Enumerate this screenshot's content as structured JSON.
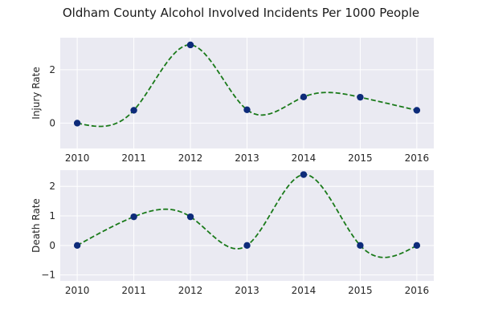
{
  "chart_data": {
    "type": "line",
    "title": "Oldham County Alcohol Involved Incidents Per 1000 People",
    "colors": {
      "background": "#eaeaf2",
      "grid": "#ffffff",
      "curve": "#1a7a1a",
      "marker": "#0d2b7a"
    },
    "subplots": [
      {
        "ylabel": "Injury Rate",
        "x": [
          2010,
          2011,
          2012,
          2013,
          2014,
          2015,
          2016
        ],
        "values": [
          0,
          0.48,
          2.93,
          0.5,
          0.98,
          0.97,
          0.48
        ],
        "xlim": [
          2009.7,
          2016.3
        ],
        "ylim": [
          -0.95,
          3.2
        ],
        "xticks": [
          2010,
          2011,
          2012,
          2013,
          2014,
          2015,
          2016
        ],
        "yticks": [
          0,
          2
        ]
      },
      {
        "ylabel": "Death Rate",
        "x": [
          2010,
          2011,
          2012,
          2013,
          2014,
          2015,
          2016
        ],
        "values": [
          0,
          0.97,
          0.97,
          0,
          2.4,
          0,
          0
        ],
        "xlim": [
          2009.7,
          2016.3
        ],
        "ylim": [
          -1.2,
          2.55
        ],
        "xticks": [
          2010,
          2011,
          2012,
          2013,
          2014,
          2015,
          2016
        ],
        "yticks": [
          -1,
          0,
          1,
          2
        ]
      }
    ]
  }
}
